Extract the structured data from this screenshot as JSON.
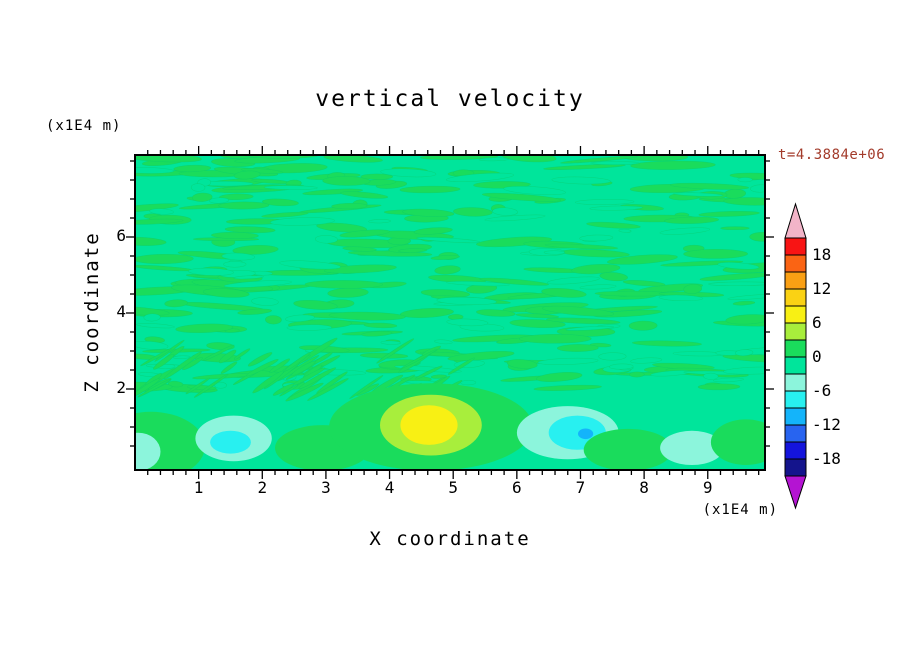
{
  "figure": {
    "title": "vertical velocity",
    "y_axis_unit": "(x1E4 m)",
    "x_axis_unit": "(x1E4 m)",
    "x_axis_title": "X coordinate",
    "y_axis_title": "Z coordinate",
    "time_label": "t=4.3884e+06",
    "time_label_color": "#A33B2B"
  },
  "chart_data": {
    "type": "heatmap",
    "title": "vertical velocity",
    "xlabel": "X coordinate",
    "ylabel": "Z coordinate",
    "x_unit": "(x1E4 m)",
    "y_unit": "(x1E4 m)",
    "time_annotation": "t=4.3884e+06",
    "xlim": [
      0,
      9.9
    ],
    "ylim": [
      0,
      8.3
    ],
    "x_ticks": [
      1,
      2,
      3,
      4,
      5,
      6,
      7,
      8,
      9
    ],
    "y_ticks": [
      2,
      4,
      6
    ],
    "x_minor_step": 0.2,
    "y_minor_step": 0.5,
    "contour_interval": 3,
    "grid": false,
    "legend_position": "right-colorbar",
    "colorbar": {
      "label_values": [
        18,
        12,
        6,
        0,
        -6,
        -12,
        -18
      ],
      "boxes_top_to_bottom": [
        {
          "range": [
            18,
            21
          ],
          "color": "#F81414"
        },
        {
          "range": [
            15,
            18
          ],
          "color": "#FA6414"
        },
        {
          "range": [
            12,
            15
          ],
          "color": "#FAA014"
        },
        {
          "range": [
            9,
            12
          ],
          "color": "#FAD214"
        },
        {
          "range": [
            6,
            9
          ],
          "color": "#F8F014"
        },
        {
          "range": [
            3,
            6
          ],
          "color": "#A8EE3C"
        },
        {
          "range": [
            0,
            3
          ],
          "color": "#1ADC5C"
        },
        {
          "range": [
            -3,
            0
          ],
          "color": "#00E59B"
        },
        {
          "range": [
            -6,
            -3
          ],
          "color": "#8CF5DC"
        },
        {
          "range": [
            -9,
            -6
          ],
          "color": "#28F0F0"
        },
        {
          "range": [
            -12,
            -9
          ],
          "color": "#14B4FA"
        },
        {
          "range": [
            -15,
            -12
          ],
          "color": "#2864F0"
        },
        {
          "range": [
            -18,
            -15
          ],
          "color": "#1414DC"
        },
        {
          "range": [
            -21,
            -18
          ],
          "color": "#14148C"
        }
      ],
      "over_arrow_color": "#F2B4C8",
      "under_arrow_color": "#B414D2"
    },
    "field": {
      "description": "vertical velocity near 0 everywhere; fine horizontal mottling (bands -3..0 and 0..3) above z=2; smoother layer below z=2 with updraft maximum ~6-9 near x=4.65,z=1 and downdraft minima ~-6 to -12 near x=1.5 and x=7,z~0.8",
      "background_band": [
        -3,
        0
      ],
      "background_color": "#00E59B",
      "texture_band": [
        0,
        3
      ],
      "texture_color": "#1ADC5C",
      "texture": {
        "seed": 11,
        "streak_count": 240,
        "hole_count": 90,
        "diag_count": 55,
        "z_min": 2.0
      },
      "features": [
        {
          "x": 0.25,
          "z": 0.5,
          "rx": 0.85,
          "rz": 0.9,
          "band": [
            0,
            3
          ],
          "color": "#1ADC5C"
        },
        {
          "x": 0.05,
          "z": 0.35,
          "rx": 0.35,
          "rz": 0.5,
          "band": [
            -6,
            -3
          ],
          "color": "#8CF5DC"
        },
        {
          "x": 1.55,
          "z": 0.7,
          "rx": 0.6,
          "rz": 0.6,
          "band": [
            -6,
            -3
          ],
          "color": "#8CF5DC"
        },
        {
          "x": 1.5,
          "z": 0.6,
          "rx": 0.32,
          "rz": 0.3,
          "band": [
            -9,
            -6
          ],
          "color": "#28F0F0"
        },
        {
          "x": 2.95,
          "z": 0.45,
          "rx": 0.75,
          "rz": 0.6,
          "band": [
            0,
            3
          ],
          "color": "#1ADC5C"
        },
        {
          "x": 4.65,
          "z": 1.0,
          "rx": 1.6,
          "rz": 1.15,
          "band": [
            0,
            3
          ],
          "color": "#1ADC5C"
        },
        {
          "x": 4.65,
          "z": 1.05,
          "rx": 0.8,
          "rz": 0.8,
          "band": [
            3,
            6
          ],
          "color": "#A8EE3C"
        },
        {
          "x": 4.62,
          "z": 1.05,
          "rx": 0.45,
          "rz": 0.52,
          "band": [
            6,
            9
          ],
          "color": "#F8F014"
        },
        {
          "x": 6.8,
          "z": 0.85,
          "rx": 0.8,
          "rz": 0.7,
          "band": [
            -6,
            -3
          ],
          "color": "#8CF5DC"
        },
        {
          "x": 6.95,
          "z": 0.85,
          "rx": 0.45,
          "rz": 0.45,
          "band": [
            -9,
            -6
          ],
          "color": "#28F0F0"
        },
        {
          "x": 7.08,
          "z": 0.82,
          "rx": 0.12,
          "rz": 0.14,
          "band": [
            -12,
            -9
          ],
          "color": "#14B4FA"
        },
        {
          "x": 7.75,
          "z": 0.4,
          "rx": 0.7,
          "rz": 0.55,
          "band": [
            0,
            3
          ],
          "color": "#1ADC5C"
        },
        {
          "x": 8.75,
          "z": 0.45,
          "rx": 0.5,
          "rz": 0.45,
          "band": [
            -6,
            -3
          ],
          "color": "#8CF5DC"
        },
        {
          "x": 9.6,
          "z": 0.6,
          "rx": 0.55,
          "rz": 0.6,
          "band": [
            0,
            3
          ],
          "color": "#1ADC5C"
        }
      ]
    }
  }
}
